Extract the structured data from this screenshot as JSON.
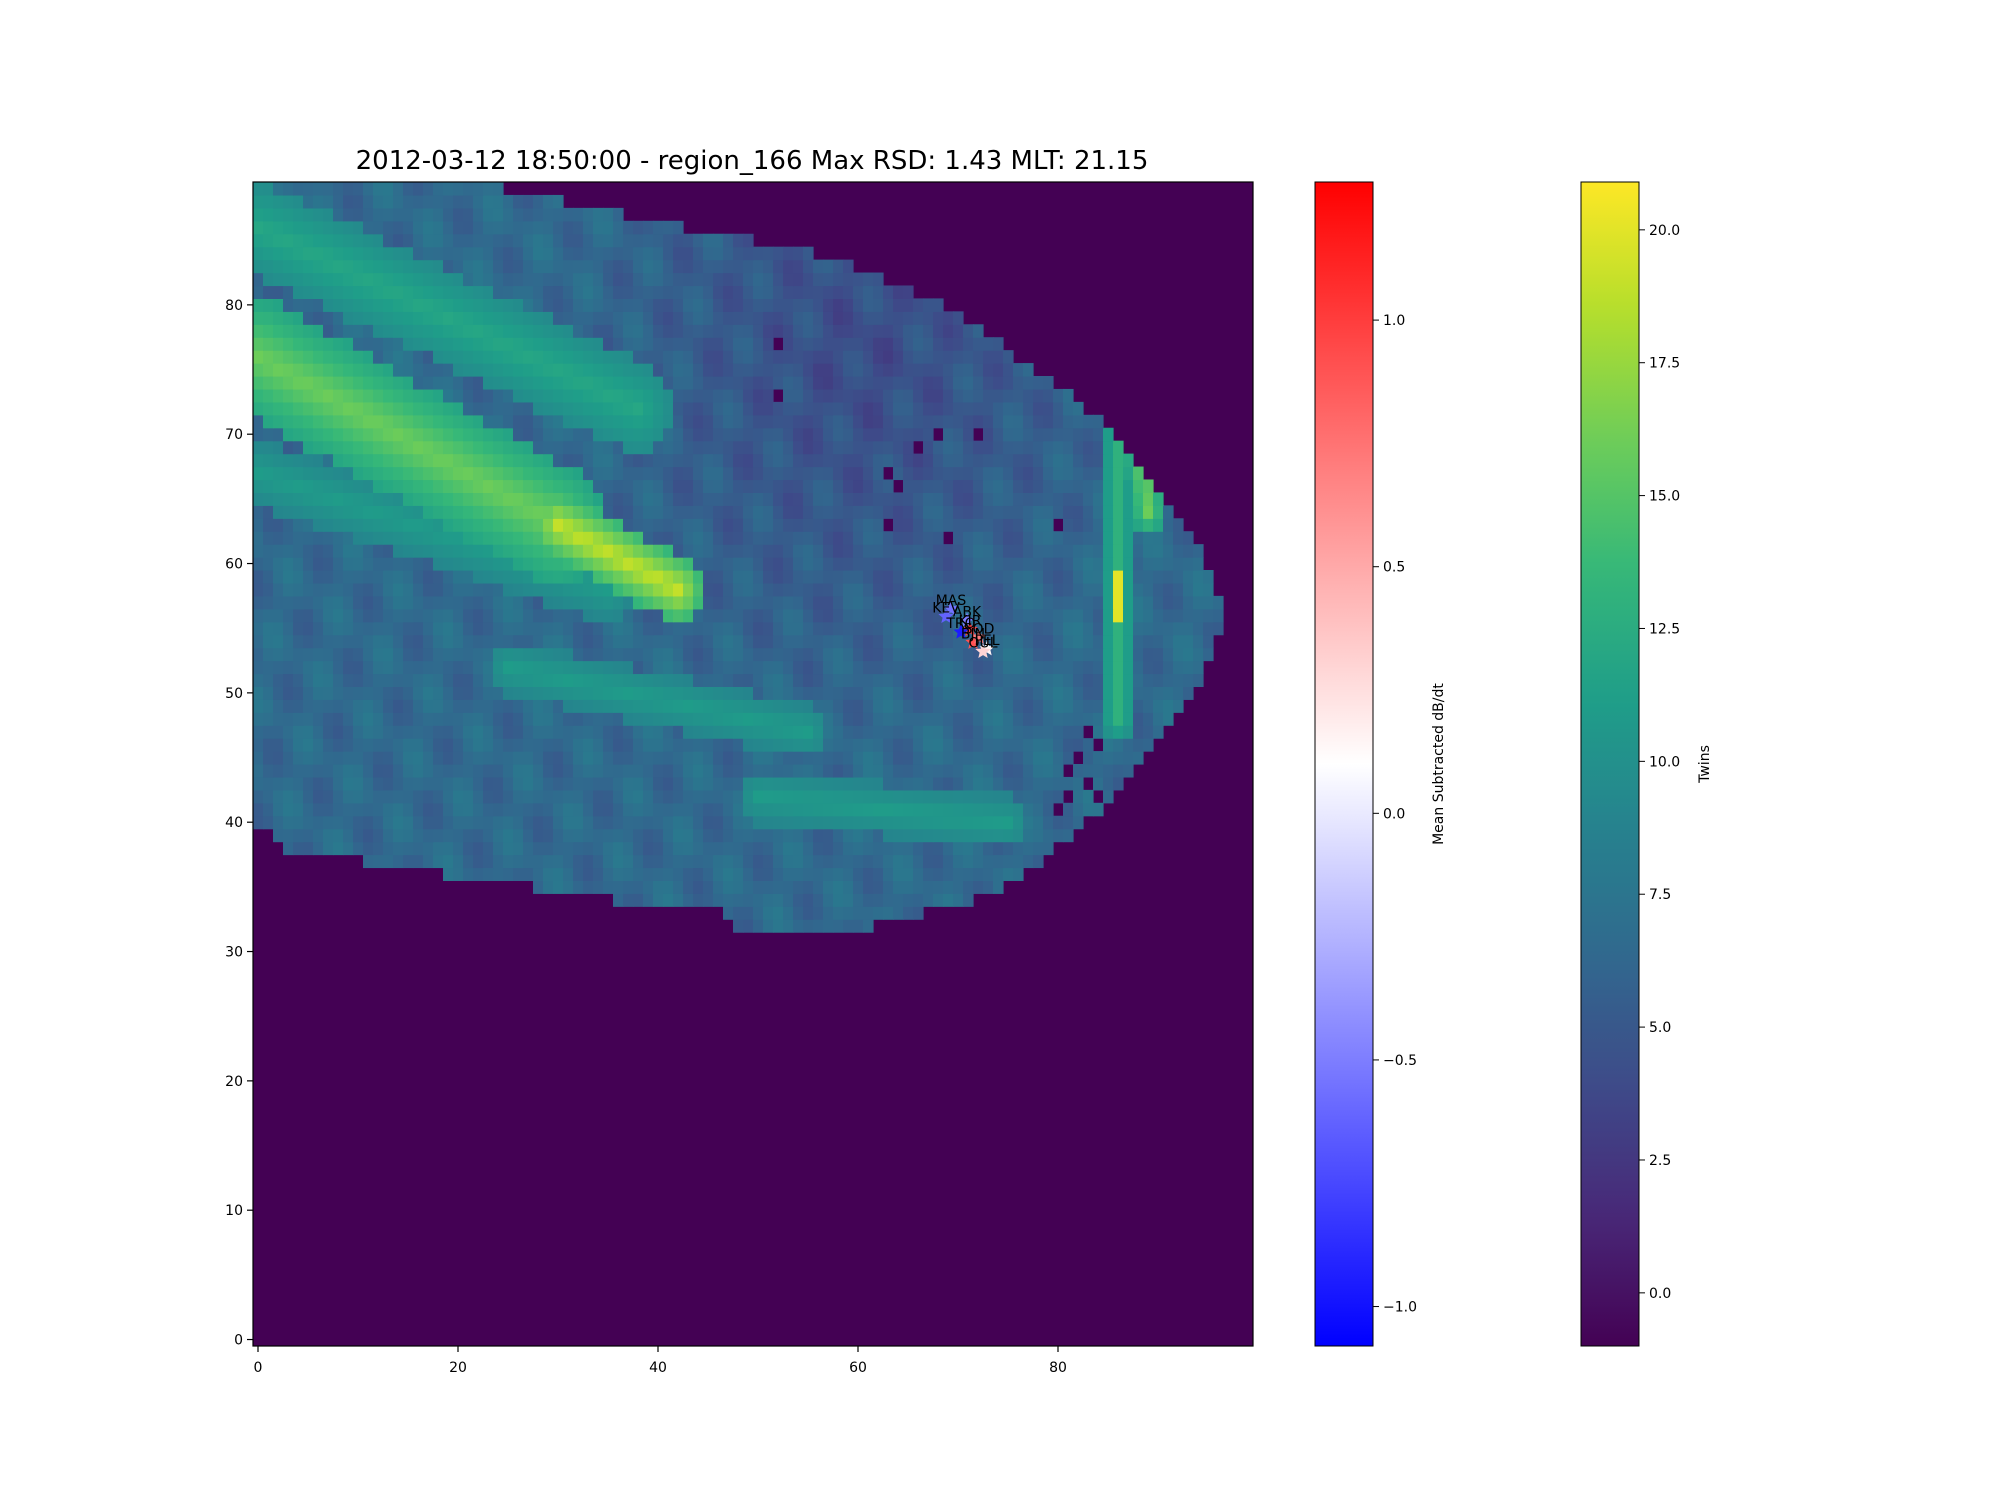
{
  "chart_data": {
    "type": "heatmap",
    "title": "2012-03-12 18:50:00 - region_166 Max RSD: 1.43 MLT: 21.15",
    "xlabel": "",
    "ylabel": "",
    "xlim": [
      -0.5,
      99.5
    ],
    "ylim": [
      -0.5,
      89.5
    ],
    "xticks": [
      0,
      20,
      40,
      60,
      80
    ],
    "yticks": [
      0,
      10,
      20,
      30,
      40,
      50,
      60,
      70,
      80
    ],
    "grid": false,
    "background_value": -1,
    "domain_boundary": {
      "rows_y": [
        90,
        88,
        86,
        84,
        82,
        80,
        78,
        76,
        74,
        72,
        70,
        68,
        66,
        64,
        62,
        60,
        58,
        56,
        54,
        52,
        50,
        48,
        46,
        44,
        42,
        40,
        38,
        36,
        34,
        32
      ],
      "x_end": [
        19,
        31,
        43,
        56,
        63,
        69,
        73,
        76,
        80,
        83,
        86,
        88,
        90,
        92,
        94,
        95,
        96,
        97,
        96,
        95,
        94,
        92,
        90,
        88,
        86,
        83,
        80,
        77,
        72,
        62
      ],
      "x_start_low": [
        [
          40,
          0
        ],
        [
          38,
          3
        ],
        [
          37,
          11
        ],
        [
          36,
          19
        ],
        [
          35,
          28
        ],
        [
          34,
          36
        ],
        [
          33,
          47
        ],
        [
          32,
          48
        ]
      ]
    },
    "twins_field": {
      "base": 6.5,
      "bands": [
        {
          "from": [
            0,
            76
          ],
          "to": [
            30,
            63
          ],
          "width": 4.5,
          "value": 16
        },
        {
          "from": [
            30,
            63
          ],
          "to": [
            42,
            58
          ],
          "width": 2.5,
          "value": 19
        },
        {
          "from": [
            0,
            86
          ],
          "to": [
            38,
            72
          ],
          "width": 3.5,
          "value": 12
        },
        {
          "from": [
            0,
            67
          ],
          "to": [
            35,
            58
          ],
          "width": 2.5,
          "value": 11
        },
        {
          "from": [
            25,
            52
          ],
          "to": [
            55,
            47
          ],
          "width": 2,
          "value": 11
        },
        {
          "from": [
            50,
            42
          ],
          "to": [
            75,
            40
          ],
          "width": 2,
          "value": 11
        },
        {
          "from": [
            86,
            74
          ],
          "to": [
            86,
            48
          ],
          "width": 1.5,
          "value": 13
        },
        {
          "from": [
            88,
            70
          ],
          "to": [
            89,
            64
          ],
          "width": 1.5,
          "value": 16
        },
        {
          "from": [
            86,
            59
          ],
          "to": [
            86,
            56
          ],
          "width": 0.8,
          "value": 20
        }
      ],
      "dark_zone": {
        "center": [
          60,
          76
        ],
        "radius": 30,
        "value": 4
      },
      "holes": [
        [
          52,
          77
        ],
        [
          52,
          73
        ],
        [
          63,
          67
        ],
        [
          63,
          63
        ],
        [
          64,
          66
        ],
        [
          68,
          70
        ],
        [
          66,
          69
        ],
        [
          69,
          62
        ],
        [
          72,
          70
        ],
        [
          80,
          63
        ],
        [
          82,
          45
        ],
        [
          83,
          43
        ],
        [
          81,
          42
        ],
        [
          84,
          46
        ],
        [
          81,
          44
        ],
        [
          84,
          42
        ],
        [
          83,
          47
        ],
        [
          80,
          41
        ]
      ]
    },
    "stations": [
      {
        "name": "MAS",
        "x": 69.3,
        "y": 56.5,
        "value": -0.55
      },
      {
        "name": "KEV",
        "x": 68.8,
        "y": 55.9,
        "value": -0.62
      },
      {
        "name": "ABK",
        "x": 70.9,
        "y": 55.6,
        "value": -0.5
      },
      {
        "name": "KIR",
        "x": 71.2,
        "y": 54.9,
        "value": 1.0
      },
      {
        "name": "TRO",
        "x": 70.3,
        "y": 54.7,
        "value": -0.95
      },
      {
        "name": "BJN",
        "x": 71.5,
        "y": 53.9,
        "value": 0.9
      },
      {
        "name": "SOD",
        "x": 72.1,
        "y": 54.3,
        "value": 0.7
      },
      {
        "name": "PEL",
        "x": 72.9,
        "y": 53.4,
        "value": 0.15
      },
      {
        "name": "OUL",
        "x": 72.5,
        "y": 53.2,
        "value": 0.3
      }
    ],
    "colorbars": [
      {
        "label": "Mean Subtracted dB/dt",
        "cmap": "bwr",
        "vmin": -1.08,
        "vmax": 1.28,
        "ticks": [
          -1.0,
          -0.5,
          0.0,
          0.5,
          1.0
        ],
        "tick_labels": [
          "−1.0",
          "−0.5",
          "0.0",
          "0.5",
          "1.0"
        ]
      },
      {
        "label": "Twins",
        "cmap": "viridis",
        "vmin": -1.0,
        "vmax": 20.9,
        "ticks": [
          0.0,
          2.5,
          5.0,
          7.5,
          10.0,
          12.5,
          15.0,
          17.5,
          20.0
        ],
        "tick_labels": [
          "0.0",
          "2.5",
          "5.0",
          "7.5",
          "10.0",
          "12.5",
          "15.0",
          "17.5",
          "20.0"
        ]
      }
    ]
  }
}
